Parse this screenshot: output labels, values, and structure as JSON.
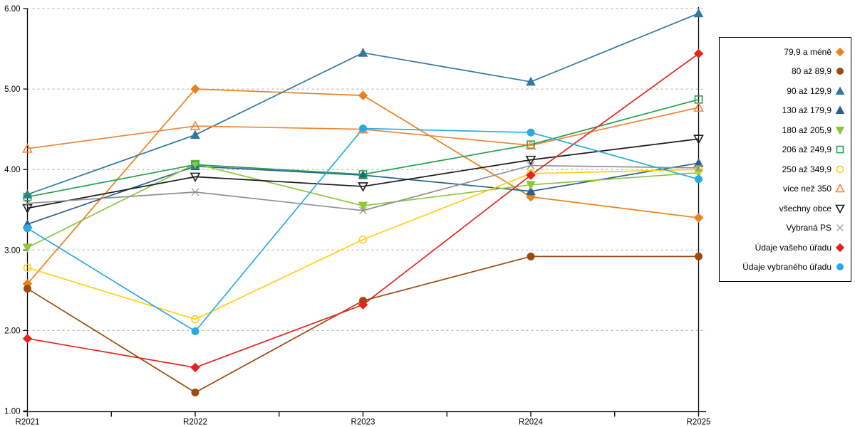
{
  "chart_data": {
    "type": "line",
    "title": "",
    "xlabel": "",
    "ylabel": "",
    "x": [
      "R2021",
      "R2022",
      "R2023",
      "R2024",
      "R2025"
    ],
    "ylim": [
      1.0,
      6.0
    ],
    "yticks": [
      "1.00",
      "2.00",
      "3.00",
      "4.00",
      "5.00",
      "6.00"
    ],
    "grid": "horizontal-dashed",
    "legend_position": "right",
    "series": [
      {
        "name": "79,9 a méně",
        "marker": "diamond",
        "fill": "solid",
        "color": "#E8821E",
        "values": [
          2.58,
          5.0,
          4.92,
          3.66,
          3.4
        ]
      },
      {
        "name": "80 až 89,9",
        "marker": "circle",
        "fill": "solid",
        "color": "#9E4A0F",
        "values": [
          2.52,
          1.23,
          2.37,
          2.92,
          2.92
        ]
      },
      {
        "name": "90 až 129,9",
        "marker": "triangle-up",
        "fill": "solid",
        "color": "#31789C",
        "values": [
          3.69,
          4.43,
          5.45,
          5.09,
          5.94
        ]
      },
      {
        "name": "130 až 179,9",
        "marker": "triangle-up",
        "fill": "solid",
        "color": "#2D5E8E",
        "values": [
          3.32,
          4.04,
          3.93,
          3.73,
          4.08
        ]
      },
      {
        "name": "180 až 205,9",
        "marker": "triangle-down",
        "fill": "solid",
        "color": "#8DC63F",
        "values": [
          3.03,
          4.07,
          3.55,
          3.81,
          3.96
        ]
      },
      {
        "name": "206 až 249,9",
        "marker": "square",
        "fill": "open",
        "color": "#22A24E",
        "values": [
          3.66,
          4.06,
          3.94,
          4.31,
          4.87
        ]
      },
      {
        "name": "250 až 349,9",
        "marker": "circle",
        "fill": "open",
        "color": "#FFCE1B",
        "values": [
          2.78,
          2.14,
          3.13,
          3.95,
          4.0
        ]
      },
      {
        "name": "více než 350",
        "marker": "triangle-up",
        "fill": "open",
        "color": "#F08438",
        "values": [
          4.26,
          4.54,
          4.5,
          4.3,
          4.77
        ]
      },
      {
        "name": "všechny obce",
        "marker": "triangle-down",
        "fill": "open",
        "color": "#1A1A1A",
        "values": [
          3.52,
          3.91,
          3.79,
          4.12,
          4.38
        ]
      },
      {
        "name": "Vybraná PS",
        "marker": "x",
        "fill": "open",
        "color": "#909090",
        "values": [
          3.58,
          3.72,
          3.49,
          4.05,
          4.02
        ]
      },
      {
        "name": "Údaje vašeho úřadu",
        "marker": "diamond",
        "fill": "solid",
        "color": "#E8231E",
        "values": [
          1.9,
          1.54,
          2.32,
          3.93,
          5.44
        ]
      },
      {
        "name": "Údaje vybraného úřadu",
        "marker": "circle",
        "fill": "solid",
        "color": "#29ABE2",
        "values": [
          3.27,
          1.99,
          4.51,
          4.46,
          3.88
        ]
      }
    ],
    "axis_color": "#000000",
    "gridline_color": "#AAAAAA"
  }
}
